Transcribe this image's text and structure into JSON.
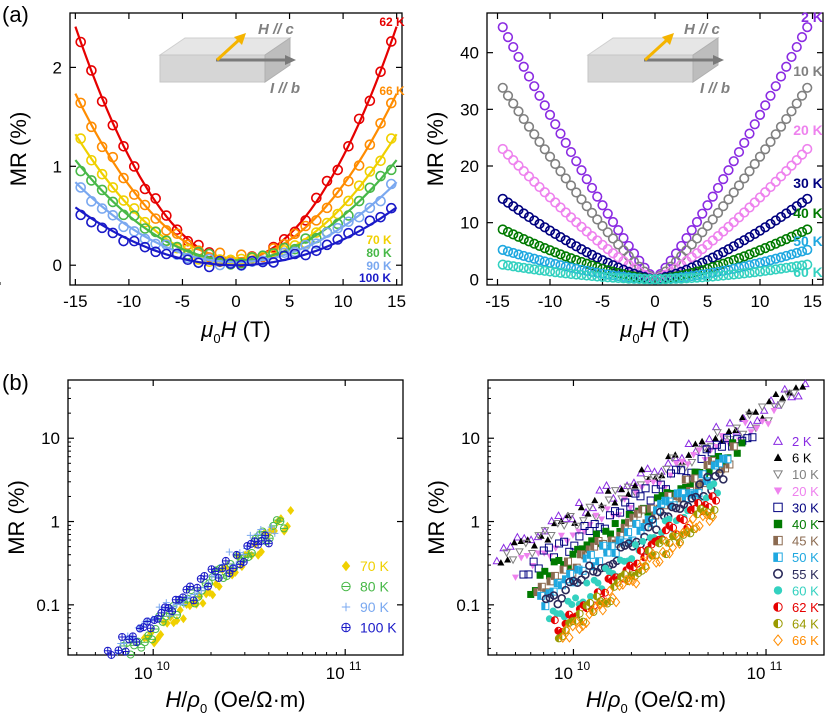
{
  "panel_labels": {
    "a": "(a)",
    "b": "(b)"
  },
  "colors": {
    "2K": "#8a2be2",
    "6K": "#000000",
    "10K": "#808080",
    "20K": "#ee82ee",
    "30K": "#00007f",
    "40K": "#007a00",
    "45K": "#8b6a50",
    "50K": "#1fa8e0",
    "55K": "#2a2a5a",
    "60K": "#33d1c0",
    "62K": "#e60000",
    "64K": "#9a9a00",
    "66K": "#ff8c00",
    "70K": "#f0d000",
    "80K": "#48b848",
    "90K": "#7aa8f0",
    "100K": "#1a1ac8",
    "arrow": "#f5b400"
  },
  "inset": {
    "h_label": "H // c",
    "i_label": "I // b"
  },
  "chart_data": [
    {
      "id": "a_left",
      "type": "scatter",
      "xlabel_sym": "μ",
      "xlabel_sub": "0",
      "xlabel_var": "H",
      "xlabel_unit": " (T)",
      "ylabel": "MR (%)",
      "xlim": [
        -15.5,
        15.5
      ],
      "ylim": [
        -0.2,
        2.55
      ],
      "xticks": [
        -15,
        -10,
        -5,
        0,
        5,
        10,
        15
      ],
      "xtick_labels": [
        "-15",
        "-10",
        "-5",
        "0",
        "5",
        "10",
        "15"
      ],
      "yticks": [
        0,
        1,
        2
      ],
      "ytick_labels": [
        "0",
        "1",
        "2"
      ],
      "marker": "open-circle",
      "fit": "quadratic",
      "series": [
        {
          "name": "62 K",
          "color": "#e60000",
          "a": 0.0105,
          "c": 0.05,
          "xmax": 14.5
        },
        {
          "name": "66 K",
          "color": "#ff8c00",
          "a": 0.0074,
          "c": 0.07,
          "xmax": 14.5
        },
        {
          "name": "70 K",
          "color": "#f0d000",
          "a": 0.0058,
          "c": 0.02,
          "xmax": 14.5
        },
        {
          "name": "80 K",
          "color": "#48b848",
          "a": 0.0045,
          "c": 0.05,
          "xmax": 14.5
        },
        {
          "name": "90 K",
          "color": "#7aa8f0",
          "a": 0.0036,
          "c": 0.03,
          "xmax": 14.5
        },
        {
          "name": "100 K",
          "color": "#1a1ac8",
          "a": 0.0026,
          "c": 0.0,
          "xmax": 14.5
        }
      ]
    },
    {
      "id": "a_right",
      "type": "scatter",
      "xlabel_sym": "μ",
      "xlabel_sub": "0",
      "xlabel_var": "H",
      "xlabel_unit": " (T)",
      "ylabel": "MR (%)",
      "xlim": [
        -16,
        16
      ],
      "ylim": [
        -1,
        47
      ],
      "xticks": [
        -15,
        -10,
        -5,
        0,
        5,
        10,
        15
      ],
      "xtick_labels": [
        "-15",
        "-10",
        "-5",
        "0",
        "5",
        "10",
        "15"
      ],
      "yticks": [
        0,
        10,
        20,
        30,
        40
      ],
      "ytick_labels": [
        "0",
        "10",
        "20",
        "30",
        "40"
      ],
      "marker": "open-circle",
      "series": [
        {
          "name": "2 K",
          "color": "#8a2be2",
          "max": 44.5,
          "p": 1.15
        },
        {
          "name": "10 K",
          "color": "#808080",
          "max": 33.8,
          "p": 1.2
        },
        {
          "name": "20 K",
          "color": "#ee82ee",
          "max": 23.0,
          "p": 1.25
        },
        {
          "name": "30 K",
          "color": "#00007f",
          "max": 14.2,
          "p": 1.35
        },
        {
          "name": "40 K",
          "color": "#007a00",
          "max": 8.8,
          "p": 1.45
        },
        {
          "name": "50 K",
          "color": "#1fa8e0",
          "max": 5.2,
          "p": 1.55
        },
        {
          "name": "60 K",
          "color": "#33d1c0",
          "max": 2.6,
          "p": 1.7
        }
      ]
    },
    {
      "id": "b_left",
      "type": "scatter",
      "scale": "log-log",
      "xlabel_var": "H",
      "xlabel_mid": "/",
      "xlabel_sym": "ρ",
      "xlabel_sub": "0",
      "xlabel_unit": " (Oe/Ω·m)",
      "ylabel": "MR (%)",
      "xlim": [
        3600000000.0,
        200000000000.0
      ],
      "ylim": [
        0.025,
        50
      ],
      "xticks": [
        10000000000.0,
        100000000000.0
      ],
      "xtick_base": "10",
      "xtick_exp": [
        "10",
        "11"
      ],
      "yticks": [
        0.1,
        1,
        10
      ],
      "ytick_labels": [
        "0.1",
        "1",
        "10"
      ],
      "series": [
        {
          "name": "70 K",
          "color": "#f0d000",
          "marker": "filled-diamond",
          "xmin": 9000000000.0,
          "xmax": 52000000000.0,
          "ymax": 1.1,
          "slope": 2.0
        },
        {
          "name": "80 K",
          "color": "#48b848",
          "marker": "circle-minus",
          "xmin": 7000000000.0,
          "xmax": 48000000000.0,
          "ymax": 1.0,
          "slope": 1.9
        },
        {
          "name": "90 K",
          "color": "#7aa8f0",
          "marker": "plus",
          "xmin": 6500000000.0,
          "xmax": 43000000000.0,
          "ymax": 0.9,
          "slope": 1.8
        },
        {
          "name": "100 K",
          "color": "#1a1ac8",
          "marker": "circle-plus",
          "xmin": 5800000000.0,
          "xmax": 40000000000.0,
          "ymax": 0.7,
          "slope": 1.75
        }
      ]
    },
    {
      "id": "b_right",
      "type": "scatter",
      "scale": "log-log",
      "xlabel_var": "H",
      "xlabel_mid": "/",
      "xlabel_sym": "ρ",
      "xlabel_sub": "0",
      "xlabel_unit": " (Oe/Ω·m)",
      "ylabel": "MR (%)",
      "xlim": [
        3600000000.0,
        200000000000.0
      ],
      "ylim": [
        0.025,
        50
      ],
      "xticks": [
        10000000000.0,
        100000000000.0
      ],
      "xtick_base": "10",
      "xtick_exp": [
        "10",
        "11"
      ],
      "yticks": [
        0.1,
        1,
        10
      ],
      "ytick_labels": [
        "0.1",
        "1",
        "10"
      ],
      "series": [
        {
          "name": "2 K",
          "color": "#8a2be2",
          "marker": "open-triangle-up",
          "xmin": 4000000000.0,
          "xmax": 160000000000.0,
          "ymax": 41,
          "slope": 1.25
        },
        {
          "name": "6 K",
          "color": "#000000",
          "marker": "filled-triangle-up",
          "xmin": 4200000000.0,
          "xmax": 155000000000.0,
          "ymax": 40,
          "slope": 1.3
        },
        {
          "name": "10 K",
          "color": "#808080",
          "marker": "open-triangle-down",
          "xmin": 4500000000.0,
          "xmax": 140000000000.0,
          "ymax": 31,
          "slope": 1.3
        },
        {
          "name": "20 K",
          "color": "#ee82ee",
          "marker": "filled-triangle-down",
          "xmin": 5000000000.0,
          "xmax": 110000000000.0,
          "ymax": 20,
          "slope": 1.4
        },
        {
          "name": "30 K",
          "color": "#00007f",
          "marker": "open-square",
          "xmin": 5500000000.0,
          "xmax": 85000000000.0,
          "ymax": 13,
          "slope": 1.45
        },
        {
          "name": "40 K",
          "color": "#007a00",
          "marker": "filled-square",
          "xmin": 6000000000.0,
          "xmax": 75000000000.0,
          "ymax": 8.5,
          "slope": 1.55
        },
        {
          "name": "45 K",
          "color": "#8b6a50",
          "marker": "half-square",
          "xmin": 6500000000.0,
          "xmax": 68000000000.0,
          "ymax": 6.5,
          "slope": 1.6
        },
        {
          "name": "50 K",
          "color": "#1fa8e0",
          "marker": "half-square",
          "xmin": 6800000000.0,
          "xmax": 63000000000.0,
          "ymax": 5.0,
          "slope": 1.7
        },
        {
          "name": "55 K",
          "color": "#2a2a5a",
          "marker": "open-circle",
          "xmin": 7200000000.0,
          "xmax": 60000000000.0,
          "ymax": 3.8,
          "slope": 1.75
        },
        {
          "name": "60 K",
          "color": "#33d1c0",
          "marker": "filled-circle",
          "xmin": 7500000000.0,
          "xmax": 56000000000.0,
          "ymax": 2.6,
          "slope": 1.85
        },
        {
          "name": "62 K",
          "color": "#e60000",
          "marker": "half-circle",
          "xmin": 8000000000.0,
          "xmax": 55000000000.0,
          "ymax": 2.0,
          "slope": 1.9
        },
        {
          "name": "64 K",
          "color": "#9a9a00",
          "marker": "half-circle",
          "xmin": 8400000000.0,
          "xmax": 54000000000.0,
          "ymax": 1.6,
          "slope": 1.95
        },
        {
          "name": "66 K",
          "color": "#ff8c00",
          "marker": "open-diamond",
          "xmin": 8800000000.0,
          "xmax": 53000000000.0,
          "ymax": 1.4,
          "slope": 2.0
        }
      ]
    }
  ]
}
